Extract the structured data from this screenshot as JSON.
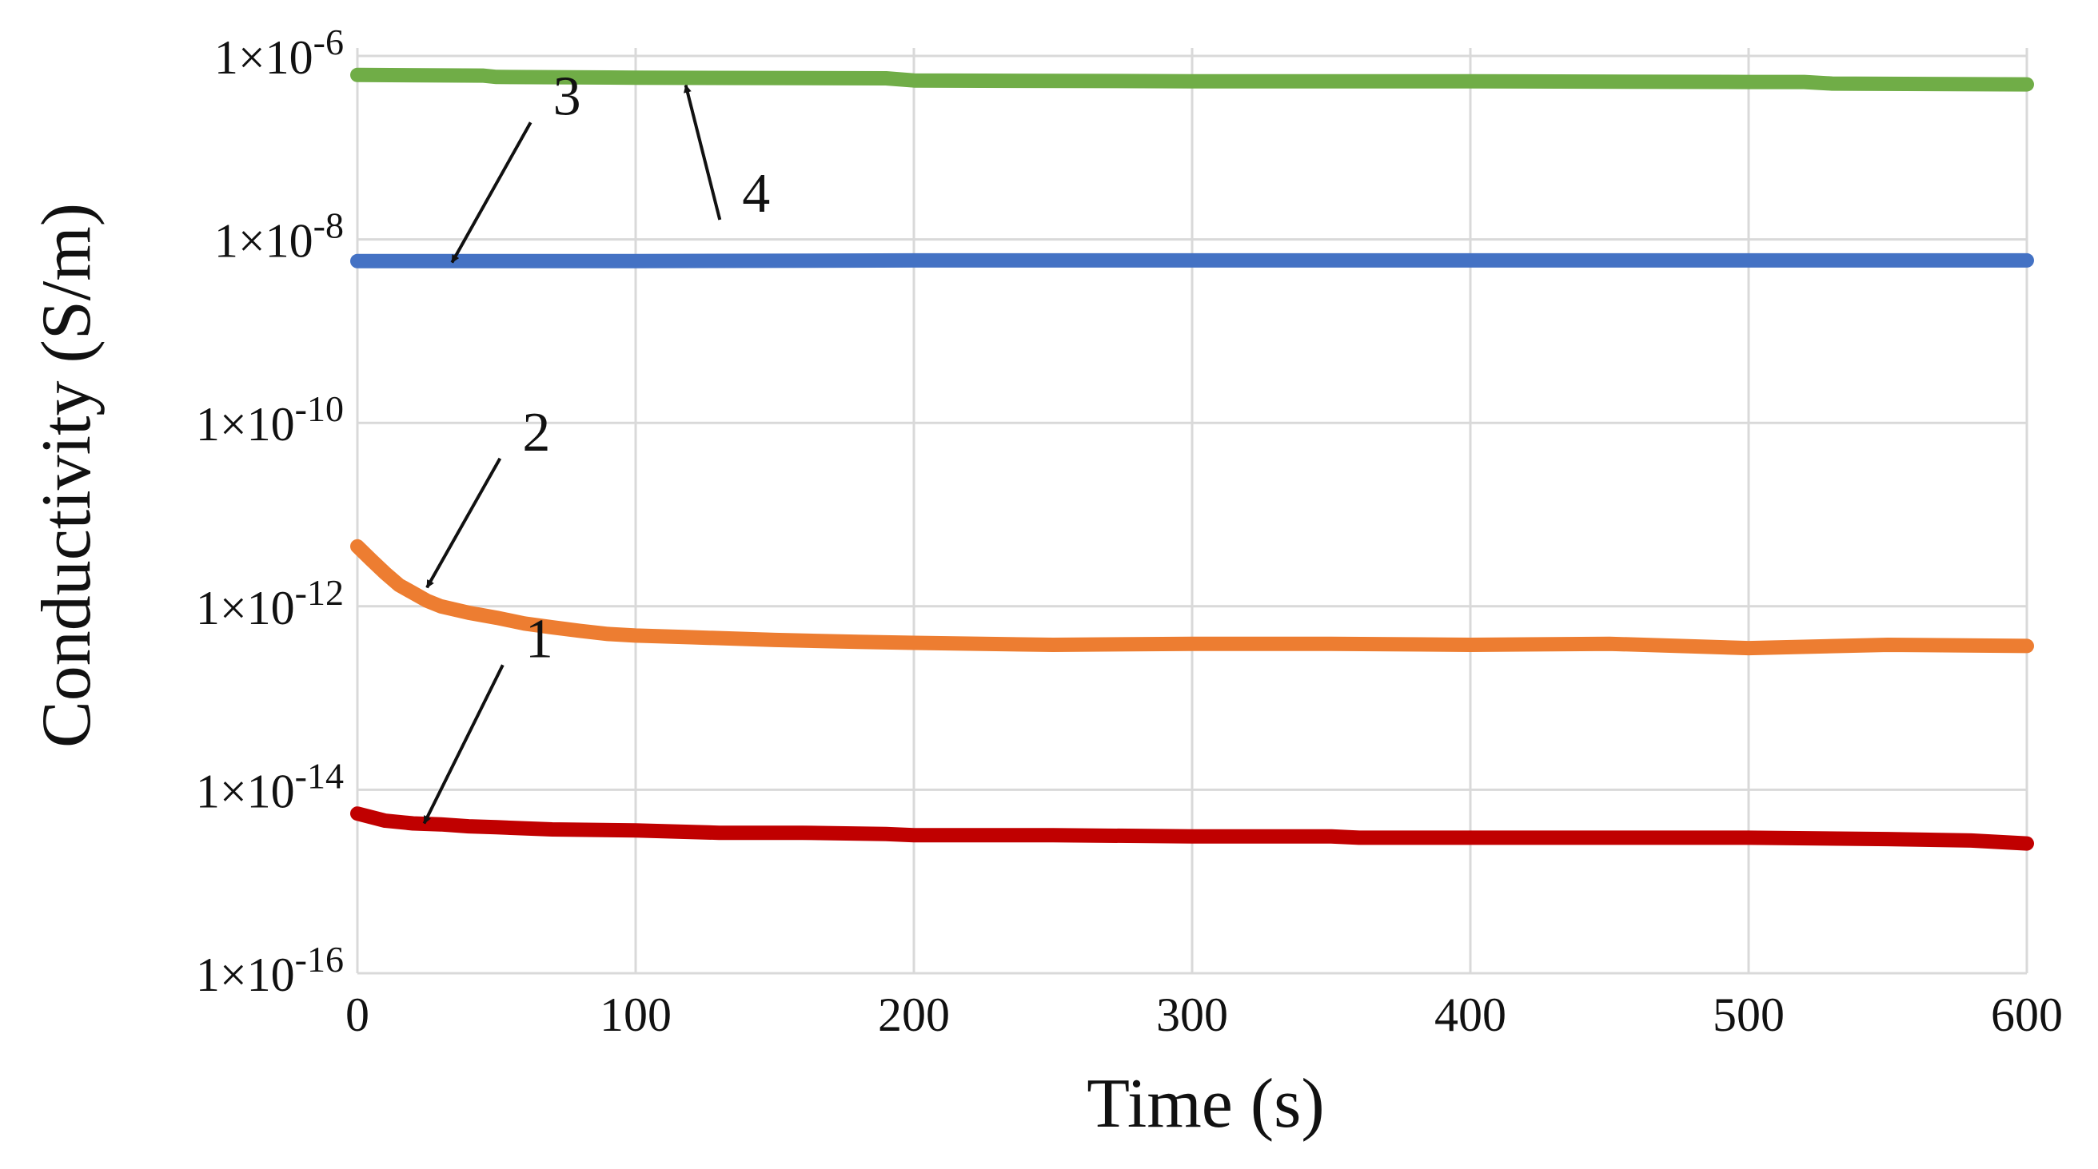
{
  "chart_data": {
    "type": "line",
    "xlabel": "Time (s)",
    "ylabel": "Conductivity (S/m)",
    "xlim": [
      0,
      600
    ],
    "ylim_log10": [
      -16,
      -6
    ],
    "yscale": "log",
    "grid": true,
    "x_ticks": [
      "0",
      "100",
      "200",
      "300",
      "400",
      "500",
      "600"
    ],
    "y_ticks": [
      {
        "base": "1×10",
        "exp": "-6"
      },
      {
        "base": "1×10",
        "exp": "-8"
      },
      {
        "base": "1×10",
        "exp": "-10"
      },
      {
        "base": "1×10",
        "exp": "-12"
      },
      {
        "base": "1×10",
        "exp": "-14"
      },
      {
        "base": "1×10",
        "exp": "-16"
      }
    ],
    "series": [
      {
        "name": "1",
        "color": "#c00000",
        "x": [
          0,
          10,
          20,
          30,
          40,
          50,
          70,
          100,
          130,
          160,
          190,
          200,
          250,
          300,
          350,
          360,
          400,
          450,
          500,
          550,
          580,
          590,
          600
        ],
        "y": [
          5.5e-15,
          4.6e-15,
          4.3e-15,
          4.2e-15,
          4e-15,
          3.9e-15,
          3.7e-15,
          3.6e-15,
          3.4e-15,
          3.4e-15,
          3.3e-15,
          3.2e-15,
          3.2e-15,
          3.1e-15,
          3.1e-15,
          3e-15,
          3e-15,
          3e-15,
          3e-15,
          2.9e-15,
          2.8e-15,
          2.7e-15,
          2.6e-15
        ]
      },
      {
        "name": "2",
        "color": "#ed7d31",
        "x": [
          0,
          5,
          10,
          15,
          20,
          25,
          30,
          40,
          50,
          60,
          70,
          80,
          90,
          100,
          120,
          150,
          180,
          200,
          250,
          300,
          350,
          400,
          450,
          500,
          550,
          600
        ],
        "y": [
          4.5e-12,
          3.2e-12,
          2.3e-12,
          1.7e-12,
          1.4e-12,
          1.15e-12,
          1e-12,
          8.5e-13,
          7.5e-13,
          6.5e-13,
          5.9e-13,
          5.4e-13,
          5e-13,
          4.8e-13,
          4.6e-13,
          4.3e-13,
          4.1e-13,
          4e-13,
          3.8e-13,
          3.9e-13,
          3.9e-13,
          3.8e-13,
          3.9e-13,
          3.5e-13,
          3.8e-13,
          3.7e-13
        ]
      },
      {
        "name": "3",
        "color": "#4472c4",
        "x": [
          0,
          100,
          200,
          300,
          400,
          500,
          600
        ],
        "y": [
          5.8e-09,
          5.8e-09,
          5.9e-09,
          5.9e-09,
          5.9e-09,
          5.9e-09,
          5.9e-09
        ]
      },
      {
        "name": "4",
        "color": "#70ad47",
        "x": [
          0,
          45,
          50,
          100,
          190,
          200,
          300,
          400,
          500,
          520,
          530,
          600
        ],
        "y": [
          6.2e-07,
          6.1e-07,
          5.9e-07,
          5.8e-07,
          5.7e-07,
          5.4e-07,
          5.3e-07,
          5.3e-07,
          5.2e-07,
          5.2e-07,
          5e-07,
          4.9e-07
        ]
      }
    ],
    "annotations": [
      {
        "label": "1",
        "target_series": "1",
        "tip_x": 24,
        "tip_y": 4.3e-15,
        "text_x": 58,
        "text_y": 2.8e-13
      },
      {
        "label": "2",
        "target_series": "2",
        "tip_x": 25,
        "tip_y": 1.6e-12,
        "text_x": 57,
        "text_y": 5e-11
      },
      {
        "label": "3",
        "target_series": "3",
        "tip_x": 34,
        "tip_y": 5.6e-09,
        "text_x": 68,
        "text_y": 2.3e-07
      },
      {
        "label": "4",
        "target_series": "4",
        "tip_x": 118,
        "tip_y": 4.8e-07,
        "text_x": 136,
        "text_y": 2e-08
      }
    ]
  }
}
